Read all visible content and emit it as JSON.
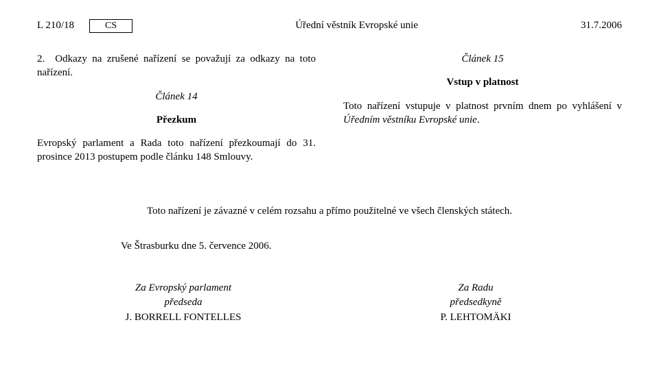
{
  "header": {
    "page_ref": "L 210/18",
    "lang_code": "CS",
    "journal": "Úřední věstník Evropské unie",
    "date": "31.7.2006"
  },
  "left_col": {
    "para1": "2. Odkazy na zrušené nařízení se považují za odkazy na toto nařízení.",
    "article14": "Článek 14",
    "article14_sub": "Přezkum",
    "para2": "Evropský parlament a Rada toto nařízení přezkoumají do 31. prosince 2013 postupem podle článku 148 Smlouvy."
  },
  "right_col": {
    "article15": "Článek 15",
    "article15_sub": "Vstup v platnost",
    "para": "Toto nařízení vstupuje v platnost prvním dnem po vyhlášení v Úředním věstníku Evropské unie."
  },
  "binding": "Toto nařízení je závazné v celém rozsahu a přímo použitelné ve všech členských státech.",
  "place_date": "Ve Štrasburku dne 5. července 2006.",
  "sign_left": {
    "l1": "Za Evropský parlament",
    "l2": "předseda",
    "l3": "J. BORRELL FONTELLES"
  },
  "sign_right": {
    "l1": "Za Radu",
    "l2": "předsedkyně",
    "l3": "P. LEHTOMÄKI"
  }
}
